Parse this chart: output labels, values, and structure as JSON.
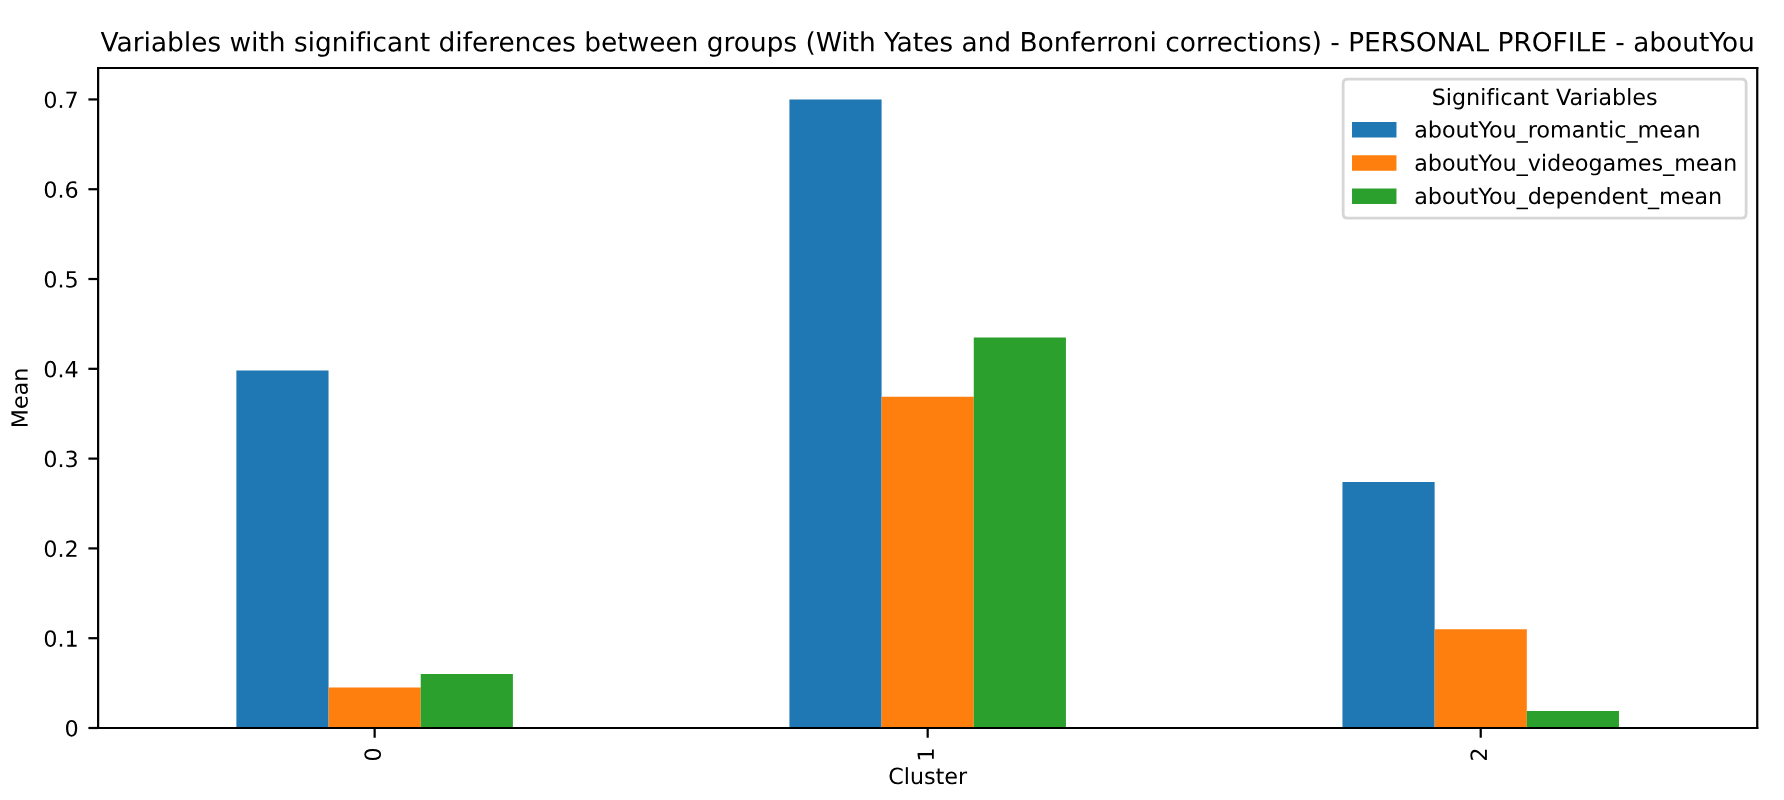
{
  "chart_data": {
    "type": "bar",
    "title": "Variables with significant diferences between groups (With Yates and Bonferroni corrections) - PERSONAL PROFILE - aboutYou",
    "xlabel": "Cluster",
    "ylabel": "Mean",
    "legend_title": "Significant Variables",
    "categories": [
      "0",
      "1",
      "2"
    ],
    "series": [
      {
        "name": "aboutYou_romantic_mean",
        "color": "#1f77b4",
        "values": [
          0.398,
          0.7,
          0.274
        ]
      },
      {
        "name": "aboutYou_videogames_mean",
        "color": "#ff7f0e",
        "values": [
          0.045,
          0.369,
          0.11
        ]
      },
      {
        "name": "aboutYou_dependent_mean",
        "color": "#2ca02c",
        "values": [
          0.06,
          0.435,
          0.019
        ]
      }
    ],
    "ylim": [
      0,
      0.735
    ],
    "yticks": [
      0,
      0.1,
      0.2,
      0.3,
      0.4,
      0.5,
      0.6,
      0.7
    ],
    "grid": false,
    "legend": "top right"
  }
}
